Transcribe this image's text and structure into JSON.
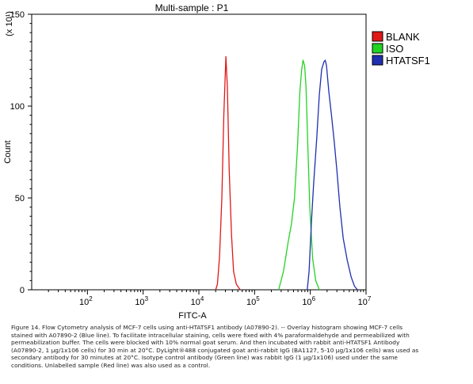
{
  "chart_data": {
    "type": "line",
    "title": "Multi-sample : P1",
    "xlabel": "FITC-A",
    "ylabel": "Count",
    "y_multiplier": "(x 10¹)",
    "xscale": "log",
    "xlim": [
      10,
      10000000
    ],
    "ylim": [
      0,
      150
    ],
    "x_ticks": [
      {
        "exp": 2,
        "base": "10",
        "sup": "2"
      },
      {
        "exp": 3,
        "base": "10",
        "sup": "3"
      },
      {
        "exp": 4,
        "base": "10",
        "sup": "4"
      },
      {
        "exp": 5,
        "base": "10",
        "sup": "5"
      },
      {
        "exp": 6,
        "base": "10",
        "sup": "6"
      },
      {
        "exp": 7,
        "base": "10",
        "sup": "7"
      }
    ],
    "y_ticks": [
      0,
      50,
      100,
      150
    ],
    "grid": false,
    "legend": "top-right",
    "series": [
      {
        "name": "BLANK",
        "color": "#e01818",
        "points": [
          [
            20000,
            0
          ],
          [
            21500,
            3
          ],
          [
            23500,
            18
          ],
          [
            25800,
            50
          ],
          [
            28000,
            95
          ],
          [
            30500,
            127
          ],
          [
            32500,
            110
          ],
          [
            35000,
            65
          ],
          [
            38500,
            30
          ],
          [
            42000,
            10
          ],
          [
            47000,
            3
          ],
          [
            55000,
            0
          ]
        ]
      },
      {
        "name": "ISO",
        "color": "#22d422",
        "points": [
          [
            270000,
            0
          ],
          [
            330000,
            10
          ],
          [
            400000,
            26
          ],
          [
            460000,
            36
          ],
          [
            520000,
            50
          ],
          [
            590000,
            78
          ],
          [
            650000,
            108
          ],
          [
            700000,
            120
          ],
          [
            740000,
            125
          ],
          [
            790000,
            122
          ],
          [
            840000,
            110
          ],
          [
            900000,
            80
          ],
          [
            980000,
            45
          ],
          [
            1100000,
            17
          ],
          [
            1250000,
            5
          ],
          [
            1450000,
            0
          ]
        ]
      },
      {
        "name": "HTATSF1",
        "color": "#1f2fb0",
        "points": [
          [
            880000,
            0
          ],
          [
            950000,
            10
          ],
          [
            1050000,
            38
          ],
          [
            1150000,
            58
          ],
          [
            1300000,
            82
          ],
          [
            1450000,
            106
          ],
          [
            1600000,
            120
          ],
          [
            1750000,
            124
          ],
          [
            1850000,
            125
          ],
          [
            1950000,
            122
          ],
          [
            2150000,
            108
          ],
          [
            2400000,
            95
          ],
          [
            2700000,
            80
          ],
          [
            3000000,
            65
          ],
          [
            3400000,
            45
          ],
          [
            3900000,
            28
          ],
          [
            4600000,
            16
          ],
          [
            5400000,
            7
          ],
          [
            6200000,
            2
          ],
          [
            7000000,
            0
          ]
        ]
      }
    ]
  },
  "caption": "Figure 14. Flow Cytometry analysis of MCF-7 cells using anti-HTATSF1 antibody (A07890-2).  -- Overlay histogram showing MCF-7 cells\nstained with A07890-2 (Blue line). To facilitate intracellular staining, cells were fixed with 4% paraformaldehyde and permeabilized with\npermeabilization buffer. The cells were blocked with 10% normal goat serum. And then incubated with rabbit anti-HTATSF1 Antibody\n(A07890-2, 1 µg/1x106 cells) for 30 min at 20°C. DyLight®488 conjugated goat anti-rabbit IgG (BA1127, 5-10 µg/1x106 cells) was used as\nsecondary antibody for 30 minutes at 20°C. Isotype control antibody (Green line) was rabbit IgG (1 µg/1x106) used under the same\nconditions. Unlabelled sample (Red line) was also used as a control."
}
